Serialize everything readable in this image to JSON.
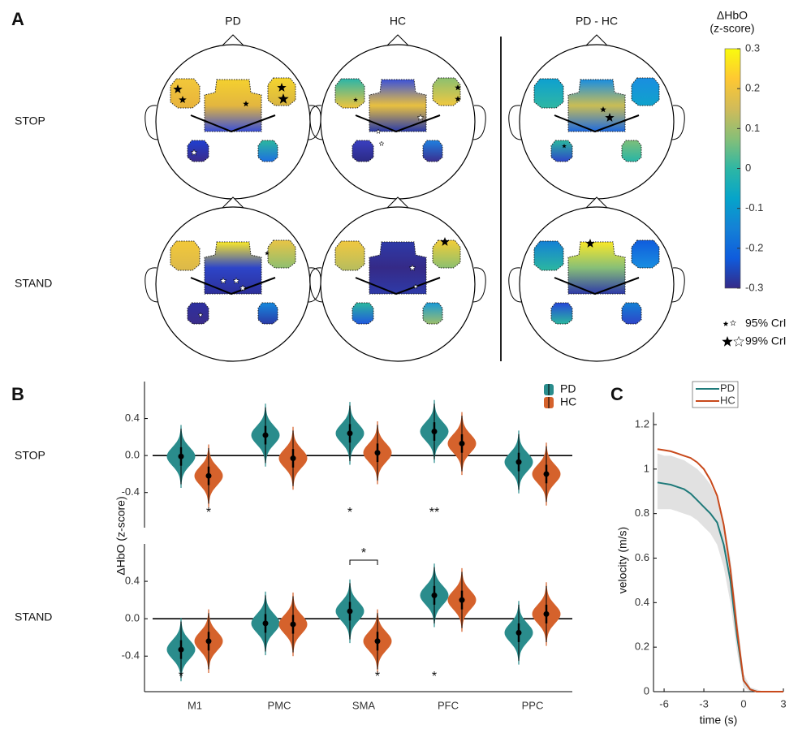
{
  "chart_data": [
    {
      "panel": "A",
      "type": "topomap",
      "columns": [
        "PD",
        "HC",
        "PD - HC"
      ],
      "rows": [
        "STOP",
        "STAND"
      ],
      "colorbar": {
        "title": [
          "ΔHbO",
          "(z-score)"
        ],
        "lim": [
          -0.3,
          0.3
        ],
        "ticks": [
          0.3,
          0.2,
          0.1,
          0,
          -0.1,
          -0.2,
          -0.3
        ],
        "colormap": [
          "#352a87",
          "#0f5cdd",
          "#1481d6",
          "#06a4ca",
          "#2eb7a4",
          "#87bf77",
          "#d1bb59",
          "#fec832",
          "#f9fb0e"
        ]
      },
      "legend": [
        "95% CrI",
        "99% CrI"
      ]
    },
    {
      "panel": "B",
      "type": "violin",
      "ylabel": "ΔHbO (z-score)",
      "categories": [
        "M1",
        "PMC",
        "SMA",
        "PFC",
        "PPC"
      ],
      "legend": [
        {
          "name": "PD",
          "color": "#2a8c8c"
        },
        {
          "name": "HC",
          "color": "#d5622c"
        }
      ],
      "ylim": [
        -0.78,
        0.8
      ],
      "yticks": [
        0.4,
        {
          "value": 0,
          "label": "0.0"
        },
        -0.4
      ],
      "rows": [
        {
          "name": "STOP",
          "series": [
            {
              "values": [
                -0.01,
                0.22,
                0.24,
                0.26,
                -0.07
              ]
            },
            {
              "values": [
                -0.22,
                -0.03,
                0.03,
                0.13,
                -0.2
              ]
            }
          ],
          "annotations": [
            {
              "category_index": 0,
              "series_index": 1,
              "text": "*"
            },
            {
              "category_index": 2,
              "series_index": 0,
              "text": "*"
            },
            {
              "category_index": 3,
              "series_index": 0,
              "text": "**"
            }
          ]
        },
        {
          "name": "STAND",
          "series": [
            {
              "values": [
                -0.33,
                -0.05,
                0.08,
                0.25,
                -0.15
              ]
            },
            {
              "values": [
                -0.24,
                -0.06,
                -0.24,
                0.2,
                0.05
              ]
            }
          ],
          "annotations": [
            {
              "category_index": 0,
              "series_index": 0,
              "text": "*"
            },
            {
              "category_index": 2,
              "series_index": 1,
              "text": "*"
            },
            {
              "category_index": 3,
              "series_index": 0,
              "text": "*"
            },
            {
              "category_index": 2,
              "bracket": true,
              "text": "*"
            }
          ]
        }
      ]
    },
    {
      "panel": "C",
      "type": "line",
      "xlabel": "time (s)",
      "ylabel": "velocity (m/s)",
      "xlim": [
        -6.8,
        3
      ],
      "ylim": [
        0,
        1.2
      ],
      "xticks": [
        -6,
        -3,
        0,
        3
      ],
      "yticks": [
        0,
        0.2,
        0.4,
        0.6,
        0.8,
        1,
        1.2
      ],
      "x": [
        -6.5,
        -6,
        -5.5,
        -5,
        -4.5,
        -4,
        -3.5,
        -3,
        -2.5,
        -2,
        -1.5,
        -1,
        -0.5,
        0,
        0.5,
        1,
        1.5,
        2,
        2.5,
        3
      ],
      "series": [
        {
          "name": "PD",
          "color": "#1f7a7a",
          "values": [
            0.94,
            0.935,
            0.93,
            0.92,
            0.91,
            0.89,
            0.86,
            0.83,
            0.8,
            0.76,
            0.66,
            0.5,
            0.25,
            0.05,
            0.01,
            0,
            0,
            0,
            0,
            0
          ],
          "band": {
            "color": "#d9d9d9",
            "lower": [
              0.82,
              0.82,
              0.82,
              0.81,
              0.8,
              0.79,
              0.77,
              0.74,
              0.71,
              0.66,
              0.56,
              0.4,
              0.18,
              0.02,
              0,
              0,
              0,
              0,
              0,
              0
            ],
            "upper": [
              1.07,
              1.06,
              1.06,
              1.05,
              1.04,
              1.02,
              1,
              0.97,
              0.93,
              0.87,
              0.77,
              0.6,
              0.34,
              0.08,
              0.02,
              0.01,
              0,
              0,
              0,
              0
            ]
          }
        },
        {
          "name": "HC",
          "color": "#c8491b",
          "values": [
            1.09,
            1.085,
            1.08,
            1.07,
            1.06,
            1.05,
            1.03,
            1,
            0.95,
            0.88,
            0.75,
            0.55,
            0.28,
            0.05,
            0.01,
            0,
            0,
            0,
            0,
            0
          ]
        }
      ]
    }
  ]
}
